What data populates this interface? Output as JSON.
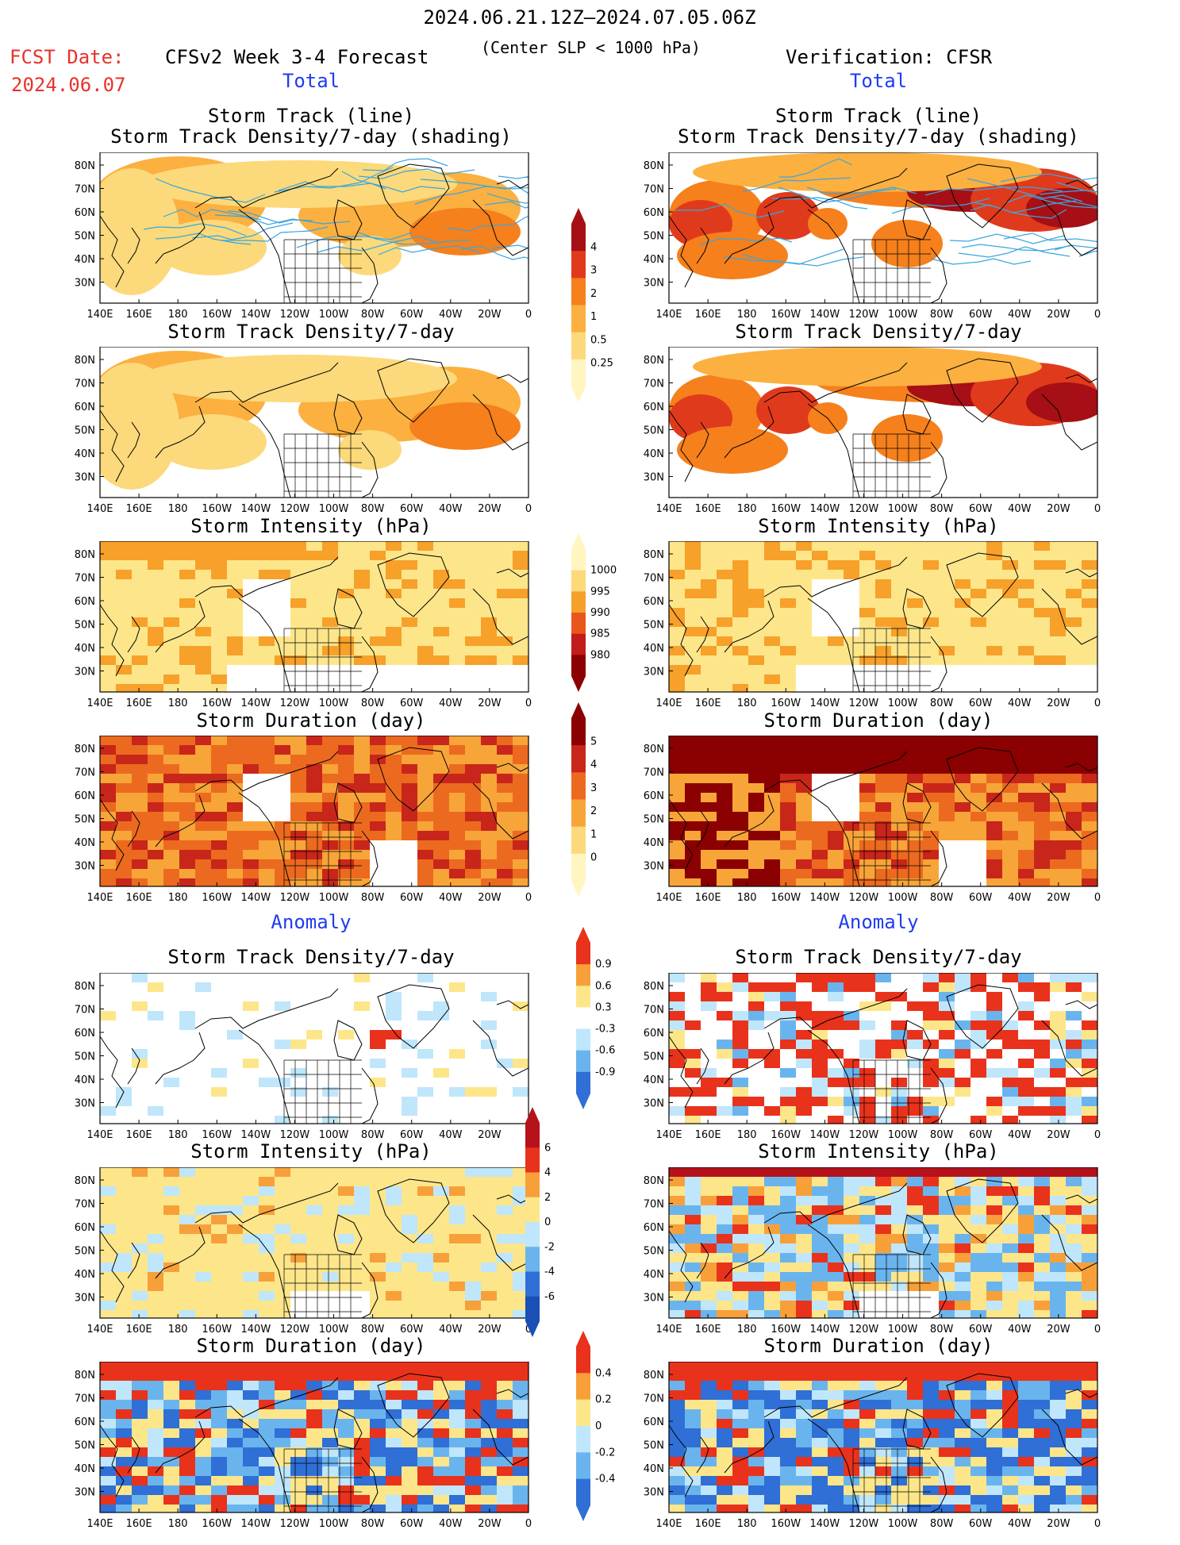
{
  "header": {
    "date_range": "2024.06.21.12Z–2024.07.05.06Z",
    "fcst_label": "FCST Date:",
    "fcst_date": "2024.06.07",
    "model_title": "CFSv2 Week 3-4 Forecast",
    "criterion": "(Center SLP < 1000 hPa)",
    "verification": "Verification: CFSR"
  },
  "sections": {
    "left_total": "Total",
    "right_total": "Total",
    "left_anomaly": "Anomaly",
    "right_anomaly": "Anomaly"
  },
  "panel_titles": {
    "track_line": "Storm Track (line)",
    "track_shading": "Storm Track Density/7-day (shading)",
    "density": "Storm Track Density/7-day",
    "intensity": "Storm Intensity (hPa)",
    "duration": "Storm Duration (day)"
  },
  "axes": {
    "lat_labels": [
      "80N",
      "70N",
      "60N",
      "50N",
      "40N",
      "30N"
    ],
    "lon_labels": [
      "140E",
      "160E",
      "180",
      "160W",
      "140W",
      "120W",
      "100W",
      "80W",
      "60W",
      "40W",
      "20W",
      "0"
    ]
  },
  "colorbars": {
    "density": {
      "labels": [
        "4",
        "3",
        "2",
        "1",
        "0.5",
        "0.25"
      ],
      "colors": [
        "#a50f15",
        "#e03a1c",
        "#f5801c",
        "#fbb040",
        "#fcd97a",
        "#fff5c0"
      ]
    },
    "intensity": {
      "labels": [
        "1000",
        "995",
        "990",
        "985",
        "980"
      ],
      "colors": [
        "#fff5c0",
        "#fcd97a",
        "#f5a02a",
        "#e8561c",
        "#c21d1a",
        "#8b0000"
      ]
    },
    "duration": {
      "labels": [
        "5",
        "4",
        "3",
        "2",
        "1",
        "0"
      ],
      "colors": [
        "#8b0000",
        "#c8261a",
        "#ec6a1f",
        "#f7a538",
        "#fcd97a",
        "#fff5c0"
      ]
    },
    "anom_density": {
      "labels": [
        "0.9",
        "0.6",
        "0.3",
        "-0.3",
        "-0.6",
        "-0.9"
      ],
      "colors": [
        "#e8321c",
        "#f7a03a",
        "#fde68a",
        "#ffffff",
        "#bfe6fa",
        "#6ab4ee",
        "#2f6fd6"
      ]
    },
    "anom_intensity": {
      "labels": [
        "6",
        "4",
        "2",
        "0",
        "-2",
        "-4",
        "-6"
      ],
      "colors": [
        "#b5121b",
        "#e8321c",
        "#f7a03a",
        "#fde68a",
        "#bfe6fa",
        "#6ab4ee",
        "#2f6fd6",
        "#1a4fb5"
      ]
    },
    "anom_duration": {
      "labels": [
        "0.4",
        "0.2",
        "0",
        "-0.2",
        "-0.4"
      ],
      "colors": [
        "#e8321c",
        "#f7a03a",
        "#fde68a",
        "#bfe6fa",
        "#6ab4ee",
        "#2f6fd6"
      ]
    }
  },
  "colors": {
    "track_line": "#3aa6e0",
    "coast": "#000000"
  }
}
